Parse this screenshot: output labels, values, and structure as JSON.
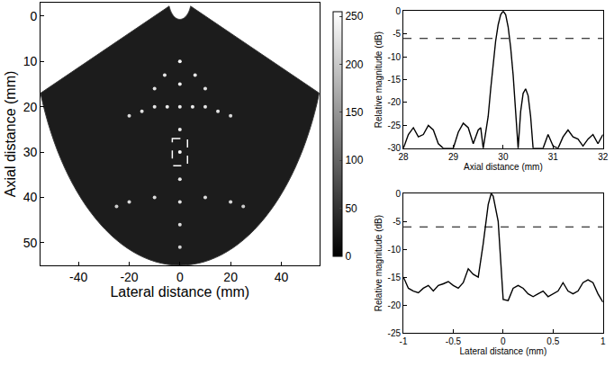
{
  "chart_data": [
    {
      "type": "image",
      "xlabel": "Lateral distance (mm)",
      "ylabel": "Axial distance (mm)",
      "xlim": [
        -55,
        55
      ],
      "ylim": [
        55,
        -3
      ],
      "xticks": [
        -40,
        -20,
        0,
        20,
        40
      ],
      "yticks": [
        0,
        10,
        20,
        30,
        40,
        50
      ],
      "targets": {
        "x": [
          0,
          0,
          0,
          0,
          0,
          0,
          0,
          0,
          0,
          -6,
          6,
          -10,
          10,
          -20,
          -15,
          -10,
          -5,
          5,
          10,
          15,
          20,
          -25,
          -20,
          -10,
          10,
          20,
          25
        ],
        "y": [
          10,
          15,
          20,
          25,
          30,
          36,
          41,
          46,
          51,
          13,
          13,
          16,
          16,
          22,
          21,
          20,
          20,
          20,
          20,
          21,
          22,
          42,
          41,
          40,
          40,
          41,
          42
        ],
        "values": [
          245,
          240,
          235,
          235,
          250,
          230,
          225,
          220,
          210,
          230,
          230,
          225,
          225,
          215,
          225,
          230,
          235,
          235,
          230,
          225,
          215,
          205,
          215,
          220,
          220,
          215,
          205
        ]
      },
      "colorbar": {
        "range": [
          0,
          255
        ],
        "ticks": [
          0,
          50,
          100,
          150,
          200,
          250
        ]
      },
      "roi": {
        "x": [
          -3,
          3
        ],
        "y": [
          27,
          33
        ]
      }
    },
    {
      "type": "line",
      "xlabel": "Axial distance (mm)",
      "ylabel": "Relative magnitude (dB)",
      "xlim": [
        28,
        32
      ],
      "ylim": [
        -30,
        0
      ],
      "xticks": [
        28,
        29,
        30,
        31,
        32
      ],
      "yticks": [
        -30,
        -25,
        -20,
        -15,
        -10,
        -5,
        0
      ],
      "x": [
        28.0,
        28.1,
        28.2,
        28.3,
        28.4,
        28.5,
        28.6,
        28.7,
        28.8,
        29.0,
        29.1,
        29.2,
        29.3,
        29.4,
        29.5,
        29.55,
        29.6,
        29.7,
        29.75,
        29.8,
        29.85,
        29.9,
        29.95,
        30.0,
        30.05,
        30.1,
        30.15,
        30.2,
        30.25,
        30.3,
        30.35,
        30.4,
        30.45,
        30.5,
        30.55,
        30.6,
        30.8,
        30.9,
        31.0,
        31.1,
        31.2,
        31.3,
        31.4,
        31.5,
        31.6,
        31.7,
        31.8,
        31.9,
        32.0
      ],
      "values": [
        -30,
        -27,
        -25.5,
        -27.5,
        -27,
        -25,
        -26,
        -29,
        -30,
        -30,
        -26.5,
        -24.5,
        -25.5,
        -29,
        -26,
        -25.5,
        -30,
        -23,
        -17,
        -11,
        -6.5,
        -3,
        -0.8,
        0,
        -0.8,
        -3.5,
        -8,
        -14,
        -22,
        -30,
        -22,
        -18,
        -17,
        -18.5,
        -23,
        -30,
        -30,
        -27,
        -29.5,
        -30,
        -27.5,
        -26,
        -27.5,
        -28,
        -29.5,
        -28,
        -27,
        -29,
        -27
      ],
      "color": "#000000",
      "line_style": "solid",
      "threshold": -6
    },
    {
      "type": "line",
      "xlabel": "Lateral distance (mm)",
      "ylabel": "Relative magnitude (dB)",
      "xlim": [
        -1,
        1
      ],
      "ylim": [
        -25,
        0
      ],
      "xticks": [
        -1,
        -0.5,
        0,
        0.5,
        1
      ],
      "yticks": [
        -25,
        -20,
        -15,
        -10,
        -5,
        0
      ],
      "x": [
        -1.0,
        -0.95,
        -0.9,
        -0.85,
        -0.8,
        -0.75,
        -0.7,
        -0.65,
        -0.6,
        -0.55,
        -0.5,
        -0.45,
        -0.4,
        -0.35,
        -0.3,
        -0.25,
        -0.2,
        -0.15,
        -0.12,
        -0.1,
        -0.05,
        -0.02,
        0.0,
        0.05,
        0.1,
        0.15,
        0.2,
        0.25,
        0.3,
        0.35,
        0.4,
        0.45,
        0.5,
        0.55,
        0.6,
        0.65,
        0.7,
        0.75,
        0.8,
        0.85,
        0.9,
        0.95,
        1.0
      ],
      "values": [
        -15,
        -17,
        -17.5,
        -17.8,
        -17,
        -16.5,
        -17.5,
        -16.5,
        -16.2,
        -15.8,
        -16.5,
        -17,
        -16,
        -13.5,
        -14.5,
        -15,
        -9,
        -2,
        0,
        -0.5,
        -5,
        -14,
        -19,
        -19.2,
        -17,
        -16.5,
        -17,
        -18,
        -18.5,
        -18,
        -17.5,
        -18.5,
        -18,
        -17.5,
        -16,
        -17.5,
        -18,
        -17.5,
        -16,
        -15.5,
        -16,
        -18,
        -19.5
      ],
      "color": "#000000",
      "line_style": "solid",
      "threshold": -6
    }
  ]
}
